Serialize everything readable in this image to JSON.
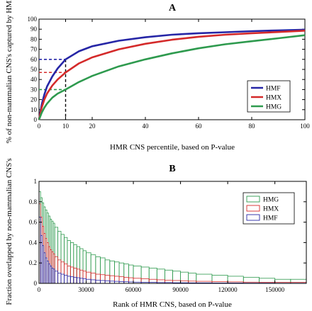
{
  "colors": {
    "hmf": "#2626a6",
    "hmx": "#d42a2a",
    "hmg": "#2e9a4e",
    "axis": "#000000"
  },
  "chart_data": [
    {
      "panel": "A",
      "type": "line",
      "title": "A",
      "xlabel": "HMR CNS percentile, based on P-value",
      "ylabel": "% of non-mammalian CNS's captured by HMR",
      "xlim": [
        0,
        100
      ],
      "ylim": [
        0,
        100
      ],
      "xticks": [
        0,
        10,
        20,
        40,
        60,
        80,
        100
      ],
      "yticks": [
        0,
        10,
        20,
        30,
        40,
        50,
        60,
        70,
        80,
        90,
        100
      ],
      "legend_position": "right",
      "grid": false,
      "x": [
        0,
        1,
        2,
        3,
        5,
        7,
        10,
        15,
        20,
        30,
        40,
        50,
        60,
        70,
        80,
        90,
        100
      ],
      "series": [
        {
          "name": "HMF",
          "color_key": "hmf",
          "values": [
            0,
            15,
            25,
            33,
            43,
            51,
            60,
            68,
            73,
            78.5,
            82,
            84.5,
            86,
            87,
            88,
            88.8,
            89.5
          ]
        },
        {
          "name": "HMX",
          "color_key": "hmx",
          "values": [
            0,
            12,
            20,
            26,
            34,
            40,
            47,
            56,
            62,
            70,
            75.5,
            79.5,
            82.5,
            84.5,
            86,
            87.2,
            88.5
          ]
        },
        {
          "name": "HMG",
          "color_key": "hmg",
          "values": [
            0,
            7,
            12,
            16,
            22,
            26,
            30,
            37.5,
            43.5,
            53,
            60,
            66,
            71,
            75,
            78,
            81,
            84
          ]
        }
      ],
      "reference_lines": [
        {
          "x": 10,
          "y": 60,
          "color_key": "hmf"
        },
        {
          "x": 10,
          "y": 47,
          "color_key": "hmx"
        },
        {
          "x": 10,
          "y": 30,
          "color_key": "hmg"
        }
      ]
    },
    {
      "panel": "B",
      "type": "bar",
      "title": "B",
      "xlabel": "Rank of HMR CNS, based on P-value",
      "ylabel": "Fraction overlapped by non-mammalian CNS's",
      "xlim": [
        0,
        170000
      ],
      "ylim": [
        0,
        1
      ],
      "xticks": [
        0,
        30000,
        60000,
        90000,
        120000,
        150000
      ],
      "yticks": [
        0,
        0.2,
        0.4,
        0.6,
        0.8,
        1
      ],
      "legend_position": "top-right",
      "grid": false,
      "x_bin_edges": [
        0,
        1000,
        2000,
        3000,
        4000,
        5000,
        6000,
        7000,
        8000,
        9000,
        10000,
        12000,
        14000,
        16000,
        18000,
        20000,
        22000,
        24000,
        26000,
        28000,
        30000,
        33000,
        36000,
        39000,
        42000,
        45000,
        48000,
        51000,
        54000,
        57000,
        60000,
        65000,
        70000,
        75000,
        80000,
        85000,
        90000,
        95000,
        100000,
        110000,
        120000,
        130000,
        140000,
        150000,
        160000,
        170000
      ],
      "series": [
        {
          "name": "HMG",
          "color_key": "hmg",
          "values": [
            0.9,
            0.84,
            0.79,
            0.75,
            0.72,
            0.69,
            0.66,
            0.63,
            0.61,
            0.59,
            0.55,
            0.51,
            0.48,
            0.45,
            0.42,
            0.4,
            0.38,
            0.36,
            0.34,
            0.32,
            0.3,
            0.28,
            0.26,
            0.25,
            0.23,
            0.22,
            0.21,
            0.2,
            0.19,
            0.18,
            0.17,
            0.16,
            0.15,
            0.14,
            0.13,
            0.12,
            0.11,
            0.1,
            0.09,
            0.08,
            0.07,
            0.06,
            0.05,
            0.04,
            0.04
          ]
        },
        {
          "name": "HMX",
          "color_key": "hmx",
          "values": [
            0.78,
            0.65,
            0.56,
            0.49,
            0.44,
            0.4,
            0.36,
            0.33,
            0.31,
            0.29,
            0.26,
            0.23,
            0.21,
            0.19,
            0.17,
            0.16,
            0.15,
            0.14,
            0.13,
            0.12,
            0.11,
            0.1,
            0.09,
            0.085,
            0.08,
            0.075,
            0.07,
            0.065,
            0.06,
            0.055,
            0.05,
            0.045,
            0.04,
            0.035,
            0.03,
            0.028,
            0.025,
            0.022,
            0.02,
            0.018,
            0.015,
            0.012,
            0.01,
            0.01,
            0.01
          ]
        },
        {
          "name": "HMF",
          "color_key": "hmf",
          "values": [
            0.65,
            0.47,
            0.37,
            0.3,
            0.25,
            0.22,
            0.19,
            0.17,
            0.15,
            0.14,
            0.12,
            0.1,
            0.09,
            0.08,
            0.07,
            0.065,
            0.06,
            0.055,
            0.05,
            0.045,
            0.04,
            0.035,
            0.03,
            0.028,
            0.025,
            0.022,
            0.02,
            0.018,
            0.016,
            0.014,
            0.012,
            0.01,
            0.01,
            0.008,
            0.008,
            0.006,
            0.006,
            0.005,
            0.005,
            0.004,
            0.004,
            0.003,
            0.003,
            0.002,
            0.002
          ]
        }
      ]
    }
  ]
}
